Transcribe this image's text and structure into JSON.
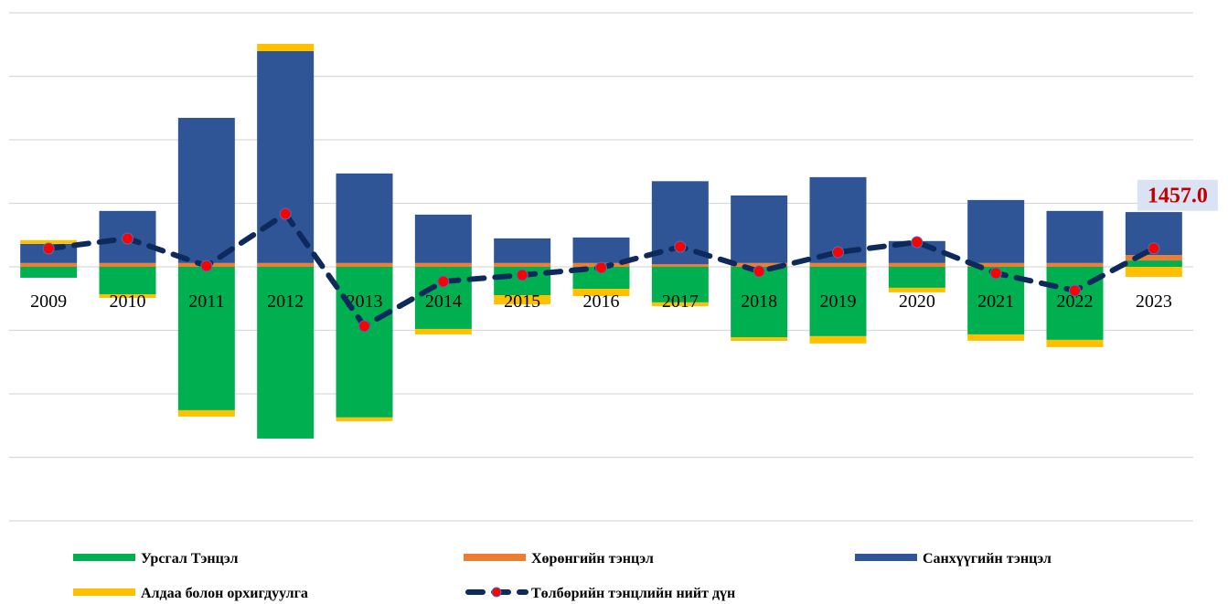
{
  "chart_data": {
    "type": "bar",
    "categories": [
      "2009",
      "2010",
      "2011",
      "2012",
      "2013",
      "2014",
      "2015",
      "2016",
      "2017",
      "2018",
      "2019",
      "2020",
      "2021",
      "2022",
      "2023"
    ],
    "series": [
      {
        "name": "Урсгал Тэнцэл",
        "color": "#00b050",
        "values": [
          -860,
          -2160,
          -11290,
          -13520,
          -11860,
          -4890,
          -2230,
          -1730,
          -2800,
          -5540,
          -5460,
          -1650,
          -5320,
          -5750,
          500
        ]
      },
      {
        "name": "Хөрөнгийн тэнцэл",
        "color": "#ed7d31",
        "values": [
          300,
          300,
          300,
          300,
          300,
          300,
          300,
          300,
          200,
          300,
          300,
          300,
          300,
          300,
          430
        ]
      },
      {
        "name": "Санхүүгийн тэнцэл",
        "color": "#2f5597",
        "values": [
          1510,
          4100,
          11430,
          16680,
          7050,
          3810,
          1940,
          2010,
          6540,
          5320,
          6760,
          1730,
          4960,
          4100,
          3380
        ]
      },
      {
        "name": "Алдаа болон орхигдуулга",
        "color": "#ffc000",
        "values": [
          290,
          -290,
          -500,
          575,
          -290,
          -430,
          -720,
          -575,
          -290,
          -290,
          -575,
          -360,
          -500,
          -575,
          -790
        ]
      },
      {
        "name": "Төлбөрийн тэнцлийн нийт дүн",
        "type": "line",
        "color": "#0e2a5c",
        "marker_color": "#ff0000",
        "values": [
          1440,
          2230,
          70,
          4170,
          -4670,
          -1150,
          -650,
          -70,
          1580,
          -360,
          1150,
          1940,
          -500,
          -1870,
          1457
        ],
        "value_labels": [
          null,
          null,
          null,
          null,
          null,
          null,
          null,
          null,
          null,
          null,
          null,
          null,
          null,
          null,
          "1457.0"
        ]
      }
    ],
    "ylim": [
      -20000,
      20000
    ],
    "yticks": [
      -20000,
      -15000,
      -10000,
      -5000,
      0,
      5000,
      10000,
      15000,
      20000
    ],
    "grid": true
  }
}
